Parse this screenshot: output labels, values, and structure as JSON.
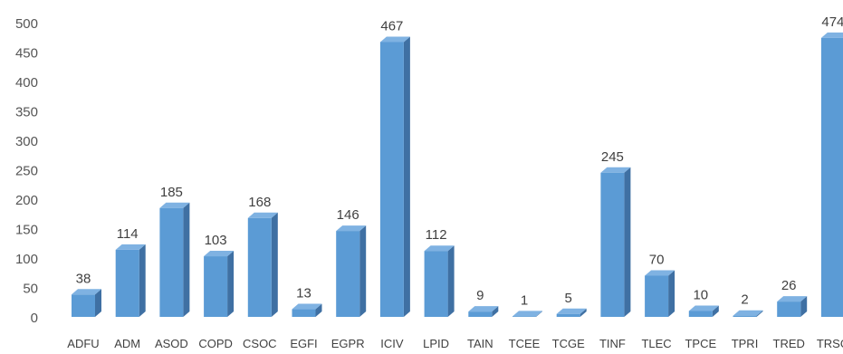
{
  "chart_data": {
    "type": "bar",
    "title": "",
    "xlabel": "",
    "ylabel": "",
    "ylim": [
      0,
      500
    ],
    "yticks": [
      0,
      50,
      100,
      150,
      200,
      250,
      300,
      350,
      400,
      450,
      500
    ],
    "grid": false,
    "legend": "none",
    "categories": [
      "ADFU",
      "ADM",
      "ASOD",
      "COPD",
      "CSOC",
      "EGFI",
      "EGPR",
      "ICIV",
      "LPID",
      "TAIN",
      "TCEE",
      "TCGE",
      "TINF",
      "TLEC",
      "TPCE",
      "TPRI",
      "TRED",
      "TRSO"
    ],
    "series": [
      {
        "values": [
          38,
          114,
          185,
          103,
          168,
          13,
          146,
          467,
          112,
          9,
          1,
          5,
          245,
          70,
          10,
          2,
          26,
          474
        ]
      }
    ],
    "colors": {
      "front": "#5b9bd5",
      "side": "#3f70a3",
      "top": "#7fb2e2"
    }
  }
}
